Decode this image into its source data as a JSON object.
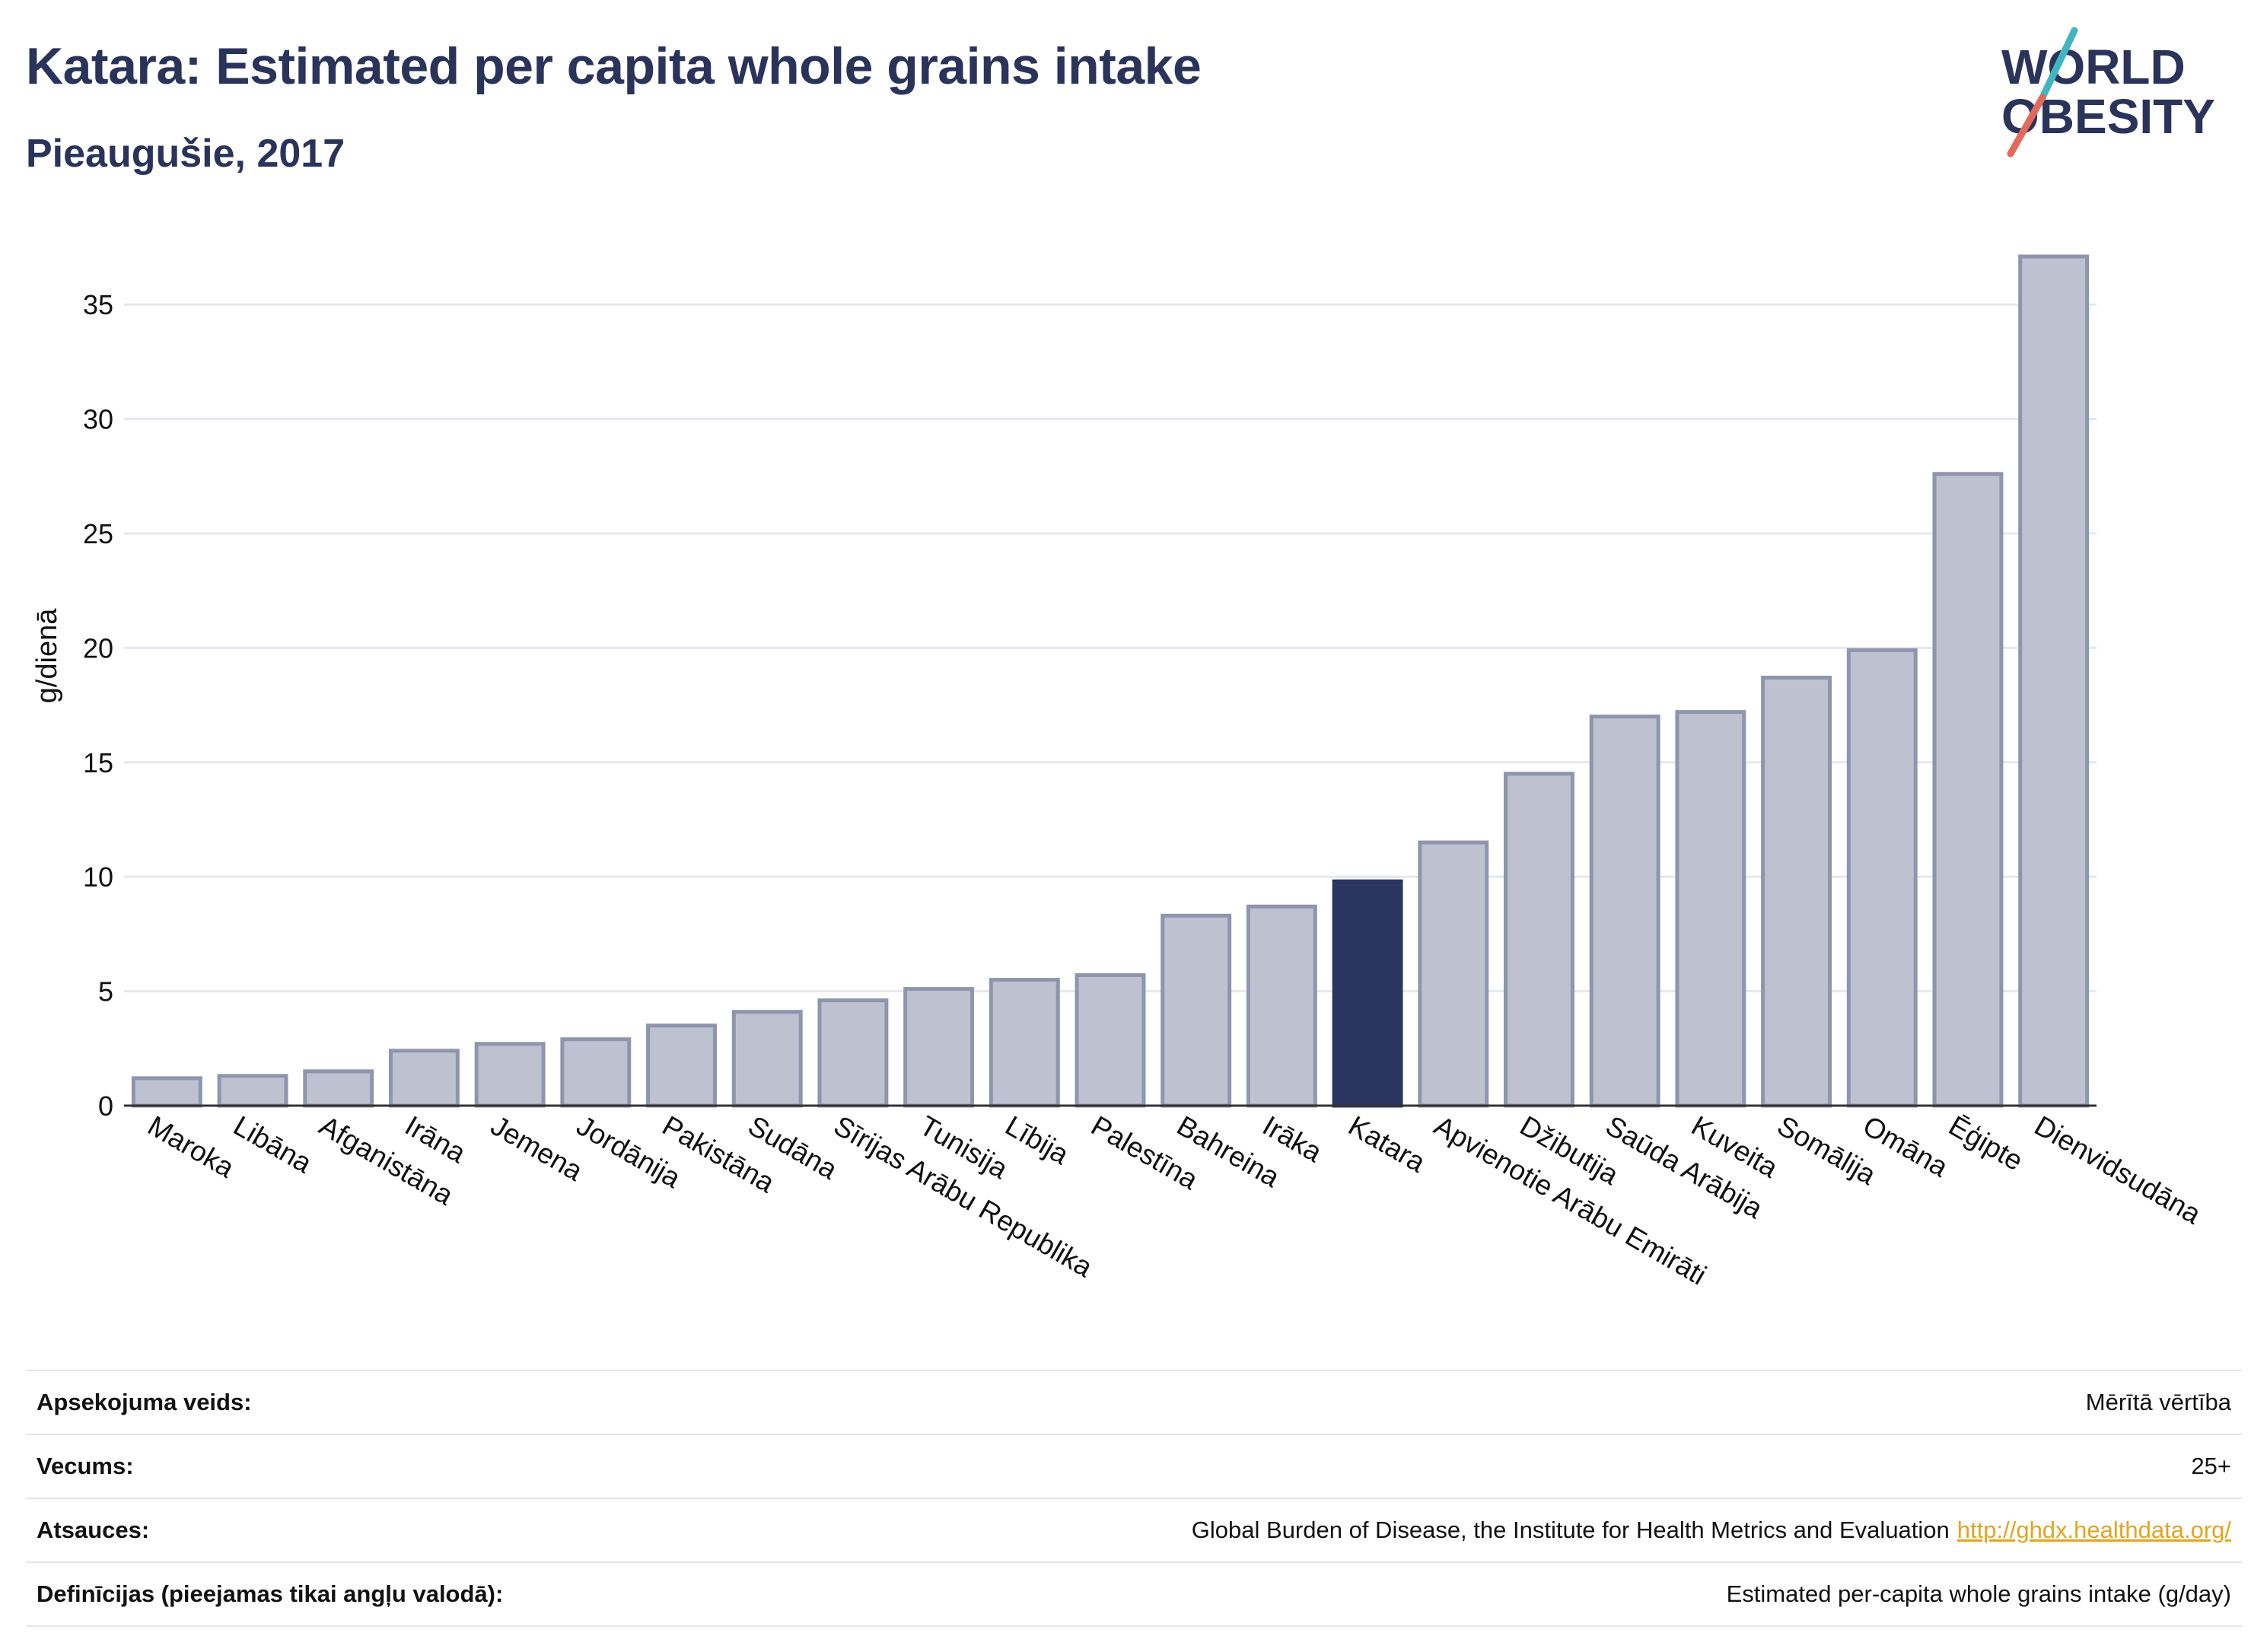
{
  "header": {
    "title": "Katara: Estimated per capita whole grains intake",
    "subtitle": "Pieaugušie, 2017"
  },
  "logo": {
    "line1": "WORLD",
    "line2": "OBESITY"
  },
  "colors": {
    "highlight": "#2a3560",
    "bar": "#bec1cf",
    "bar_edge": "#8f95ad",
    "accent_teal": "#3fb6c0",
    "accent_red": "#e26a5a",
    "link": "#e3a41f"
  },
  "chart_data": {
    "type": "bar",
    "ylabel": "g/dienā",
    "ylim": [
      0,
      37.5
    ],
    "yticks": [
      0,
      5,
      10,
      15,
      20,
      25,
      30,
      35
    ],
    "grid": true,
    "highlight": "Katara",
    "categories": [
      "Maroka",
      "Libāna",
      "Afganistāna",
      "Irāna",
      "Jemena",
      "Jordānija",
      "Pakistāna",
      "Sudāna",
      "Sīrijas Arābu Republika",
      "Tunisija",
      "Lībija",
      "Palestīna",
      "Bahreina",
      "Irāka",
      "Katara",
      "Apvienotie Arābu Emirāti",
      "Džibutija",
      "Saūda Arābija",
      "Kuveita",
      "Somālija",
      "Omāna",
      "Ēģipte",
      "Dienvidsudāna"
    ],
    "values": [
      1.2,
      1.3,
      1.5,
      2.4,
      2.7,
      2.9,
      3.5,
      4.1,
      4.6,
      5.1,
      5.5,
      5.7,
      8.3,
      8.7,
      9.8,
      11.5,
      14.5,
      17.0,
      17.2,
      18.7,
      19.9,
      27.6,
      37.1
    ]
  },
  "meta": [
    {
      "label": "Apsekojuma veids:",
      "value": "Mērītā vērtība"
    },
    {
      "label": "Vecums:",
      "value": "25+"
    },
    {
      "label": "Atsauces:",
      "value": "Global Burden of Disease, the Institute for Health Metrics and Evaluation",
      "link": "http://ghdx.healthdata.org/"
    },
    {
      "label": "Definīcijas (pieejamas tikai angļu valodā):",
      "value": "Estimated per-capita whole grains intake (g/day)"
    }
  ]
}
